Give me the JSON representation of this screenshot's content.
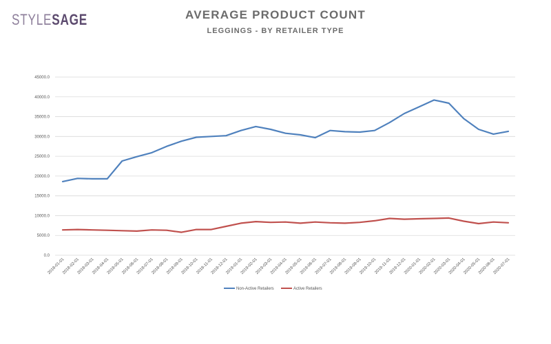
{
  "brand": {
    "part1": "STYLE",
    "part2": "SAGE"
  },
  "colors": {
    "series1": "#4f81bd",
    "series2": "#c0504d",
    "grid": "#d9d9d9",
    "brand_light": "#8e7f9b",
    "brand_dark": "#5c4a6e"
  },
  "chart_data": {
    "type": "line",
    "title": "AVERAGE PRODUCT COUNT",
    "subtitle": "LEGGINGS - BY RETAILER TYPE",
    "xlabel": "",
    "ylabel": "",
    "ylim": [
      0,
      45000
    ],
    "yticks": [
      0,
      5000,
      10000,
      15000,
      20000,
      25000,
      30000,
      35000,
      40000,
      45000
    ],
    "ytick_labels": [
      "0.0",
      "5000.0",
      "10000.0",
      "15000.0",
      "20000.0",
      "25000.0",
      "30000.0",
      "35000.0",
      "40000.0",
      "45000.0"
    ],
    "grid": "horizontal",
    "legend_position": "bottom",
    "categories": [
      "2018-01-01",
      "2018-02-01",
      "2018-03-01",
      "2018-04-01",
      "2018-05-01",
      "2018-06-01",
      "2018-07-01",
      "2018-08-01",
      "2018-09-01",
      "2018-10-01",
      "2018-11-01",
      "2018-12-01",
      "2019-01-01",
      "2019-02-01",
      "2019-03-01",
      "2019-04-01",
      "2019-05-01",
      "2019-06-01",
      "2019-07-01",
      "2019-08-01",
      "2019-09-01",
      "2019-10-01",
      "2019-11-01",
      "2019-12-01",
      "2020-01-01",
      "2020-02-01",
      "2020-03-01",
      "2020-04-01",
      "2020-05-01",
      "2020-06-01",
      "2020-07-01"
    ],
    "series": [
      {
        "name": "Non-Active Retailers",
        "color": "#4f81bd",
        "values": [
          18600,
          19400,
          19300,
          19300,
          23800,
          24900,
          25900,
          27500,
          28800,
          29800,
          30000,
          30200,
          31500,
          32500,
          31800,
          30800,
          30400,
          29700,
          31500,
          31200,
          31100,
          31500,
          33500,
          35800,
          37500,
          39200,
          38400,
          34500,
          31800,
          30600,
          31300
        ]
      },
      {
        "name": "Active Retailers",
        "color": "#c0504d",
        "values": [
          6400,
          6500,
          6400,
          6300,
          6200,
          6100,
          6400,
          6300,
          5800,
          6500,
          6500,
          7300,
          8100,
          8500,
          8300,
          8400,
          8100,
          8400,
          8200,
          8100,
          8300,
          8700,
          9300,
          9100,
          9200,
          9300,
          9400,
          8600,
          8000,
          8400,
          8200
        ]
      }
    ]
  }
}
